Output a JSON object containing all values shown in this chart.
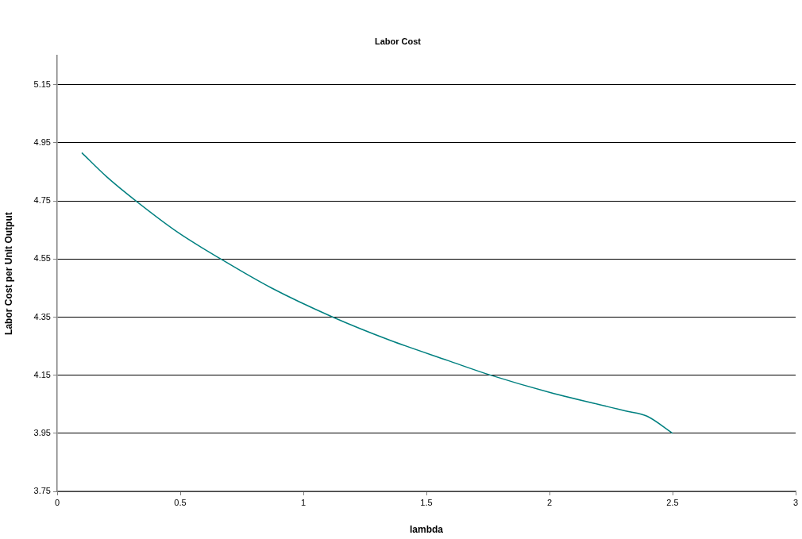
{
  "chart_data": {
    "type": "line",
    "title": "Labor Cost",
    "xlabel": "lambda",
    "ylabel": "Labor Cost per Unit Output",
    "x": [
      0.1,
      0.2,
      0.32,
      0.49,
      0.665,
      0.869,
      1.12,
      1.353,
      1.589,
      1.761,
      2.0,
      2.31,
      2.396,
      2.5
    ],
    "series": [
      {
        "color": "#008080",
        "values": [
          4.916,
          4.834,
          4.75,
          4.642,
          4.55,
          4.451,
          4.35,
          4.27,
          4.2,
          4.15,
          4.091,
          4.027,
          4.009,
          3.95
        ]
      }
    ],
    "xlim": [
      0,
      3
    ],
    "xticks": [
      0,
      0.5,
      1,
      1.5,
      2,
      2.5,
      3
    ],
    "ylim": [
      3.75,
      5.25
    ],
    "yticks": [
      3.75,
      3.95,
      4.15,
      4.35,
      4.55,
      4.75,
      4.95,
      5.15
    ],
    "grid": "y",
    "legend": false,
    "marker": "none",
    "line_style": "solid"
  }
}
